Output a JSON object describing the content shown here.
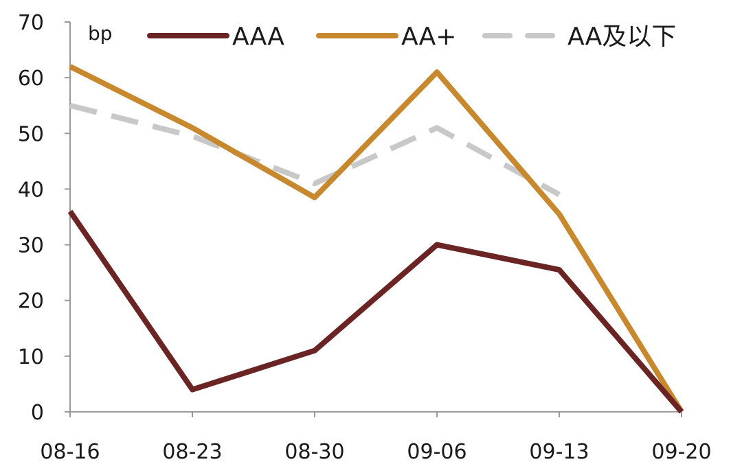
{
  "chart_data": {
    "type": "line",
    "ylabel": "bp",
    "ylim": [
      0,
      70
    ],
    "yticks": [
      0,
      10,
      20,
      30,
      40,
      50,
      60,
      70
    ],
    "categories": [
      "08-16",
      "08-23",
      "08-30",
      "09-06",
      "09-13",
      "09-20"
    ],
    "grid": false,
    "legend_position": "top",
    "series": [
      {
        "name": "AAA",
        "color": "#6b2424",
        "dash": "solid",
        "values": [
          36,
          4,
          11,
          30,
          25.5,
          0
        ]
      },
      {
        "name": "AA+",
        "color": "#c8892e",
        "dash": "solid",
        "values": [
          62,
          51,
          38.5,
          61,
          35.5,
          0
        ]
      },
      {
        "name": "AA及以下",
        "color": "#c8c8c8",
        "dash": "dashed",
        "values": [
          55,
          49.5,
          41,
          51,
          39,
          null
        ]
      }
    ]
  }
}
